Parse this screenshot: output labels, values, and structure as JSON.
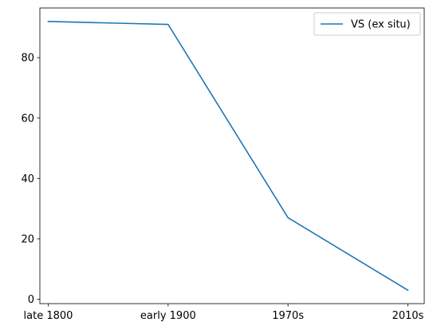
{
  "chart_data": {
    "type": "line",
    "categories": [
      "late 1800",
      "early 1900",
      "1970s",
      "2010s"
    ],
    "series": [
      {
        "name": "VS (ex situ)",
        "values": [
          92,
          91,
          27,
          3
        ],
        "color": "#1f77b4"
      }
    ],
    "title": "",
    "xlabel": "",
    "ylabel": "",
    "ylim": [
      -1.45,
      96.45
    ],
    "yticks": [
      0,
      20,
      40,
      60,
      80
    ],
    "grid": false,
    "legend_position": "upper right"
  }
}
